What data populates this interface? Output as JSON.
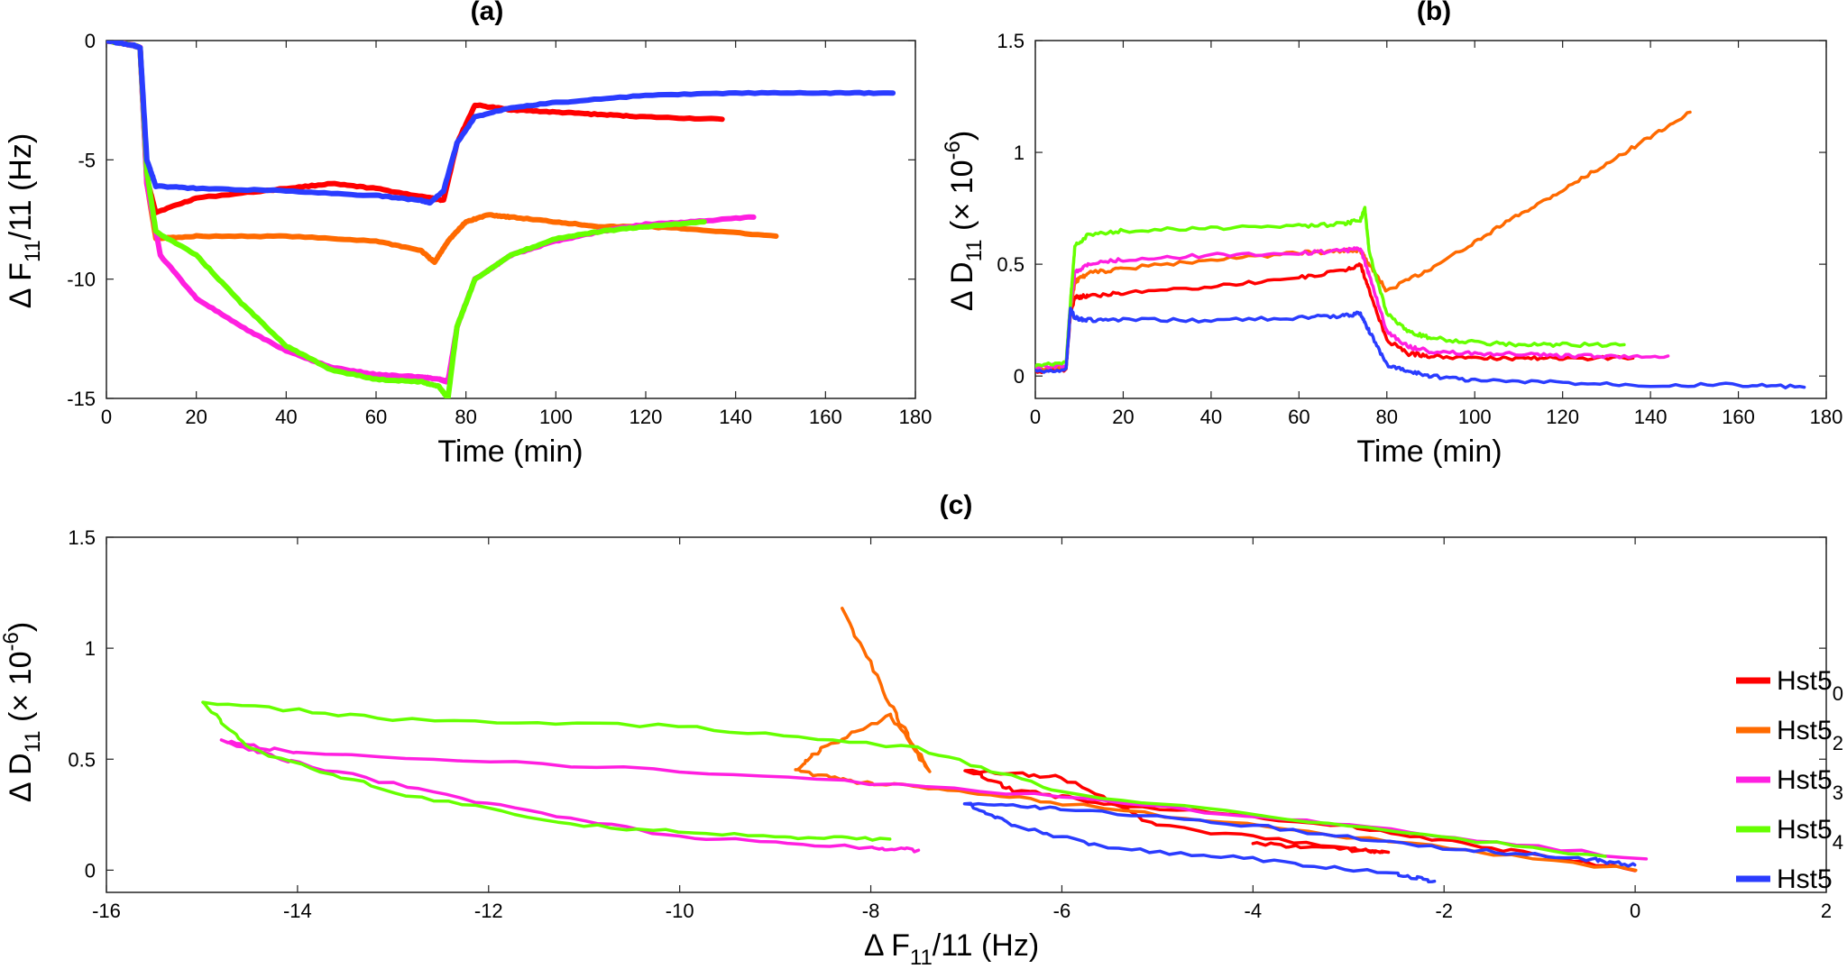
{
  "figure": {
    "colors": {
      "Hst5_0": "#ff0000",
      "Hst5_2": "#ff6a00",
      "Hst5_3": "#ff1fe0",
      "Hst5_4": "#66ff00",
      "Hst5": "#2a3cff"
    }
  },
  "chart_data": [
    {
      "id": "a",
      "type": "line",
      "title": "(a)",
      "xlabel": "Time (min)",
      "ylabel": {
        "base": "Δ F",
        "sub": "11",
        "rest": "/11 (Hz)"
      },
      "xlim": [
        0,
        180
      ],
      "ylim": [
        -15,
        0
      ],
      "xticks": [
        "0",
        "20",
        "40",
        "60",
        "80",
        "100",
        "120",
        "140",
        "160",
        "180"
      ],
      "yticks": [
        "0",
        "-5",
        "-10",
        "-15"
      ],
      "series": [
        {
          "name": "Hst5_0",
          "x": [
            0,
            6,
            7.5,
            9,
            11,
            20,
            40,
            50,
            60,
            72,
            75,
            78,
            82,
            90,
            100,
            110,
            120,
            137
          ],
          "y": [
            0,
            -0.2,
            -0.3,
            -5.8,
            -7.2,
            -6.6,
            -6.2,
            -6.0,
            -6.2,
            -6.6,
            -6.7,
            -4.3,
            -2.7,
            -2.9,
            -3.0,
            -3.1,
            -3.2,
            -3.3
          ]
        },
        {
          "name": "Hst5_2",
          "x": [
            0,
            6,
            7.5,
            9,
            11,
            20,
            40,
            60,
            70,
            73,
            76,
            80,
            85,
            90,
            100,
            110,
            120,
            130,
            149
          ],
          "y": [
            0,
            -0.2,
            -0.3,
            -6.0,
            -8.3,
            -8.2,
            -8.2,
            -8.4,
            -8.8,
            -9.3,
            -8.4,
            -7.6,
            -7.3,
            -7.4,
            -7.6,
            -7.8,
            -7.8,
            -7.9,
            -8.2
          ]
        },
        {
          "name": "Hst5_3",
          "x": [
            0,
            6,
            7.5,
            9,
            12,
            20,
            30,
            40,
            50,
            60,
            70,
            74,
            76,
            78,
            82,
            90,
            100,
            110,
            120,
            130,
            144
          ],
          "y": [
            0,
            -0.2,
            -0.3,
            -6.0,
            -9.0,
            -10.8,
            -12.0,
            -13.0,
            -13.7,
            -14.0,
            -14.1,
            -14.2,
            -14.3,
            -12.0,
            -10.0,
            -9.0,
            -8.4,
            -8.0,
            -7.7,
            -7.6,
            -7.4
          ]
        },
        {
          "name": "Hst5_4",
          "x": [
            0,
            6,
            7.5,
            9,
            11,
            20,
            30,
            40,
            50,
            60,
            70,
            74,
            76,
            78,
            82,
            90,
            100,
            110,
            120,
            133
          ],
          "y": [
            0,
            -0.2,
            -0.3,
            -5.5,
            -8.0,
            -9.0,
            -11.0,
            -12.8,
            -13.8,
            -14.2,
            -14.3,
            -14.5,
            -15.0,
            -12.0,
            -10.0,
            -9.0,
            -8.3,
            -8.0,
            -7.8,
            -7.6
          ]
        },
        {
          "name": "Hst5",
          "x": [
            0,
            6,
            7.5,
            9,
            11,
            20,
            40,
            60,
            70,
            72,
            75,
            78,
            82,
            90,
            100,
            120,
            140,
            160,
            175
          ],
          "y": [
            0,
            -0.2,
            -0.3,
            -5.0,
            -6.1,
            -6.2,
            -6.3,
            -6.5,
            -6.7,
            -6.8,
            -6.3,
            -4.3,
            -3.2,
            -2.8,
            -2.6,
            -2.3,
            -2.2,
            -2.2,
            -2.2
          ]
        }
      ]
    },
    {
      "id": "b",
      "type": "line",
      "title": "(b)",
      "xlabel": "Time (min)",
      "ylabel": {
        "base": "Δ D",
        "sub": "11",
        "rest": " (× 10",
        "sup": "-6",
        "end": ")"
      },
      "xlim": [
        0,
        180
      ],
      "ylim": [
        -0.1,
        1.5
      ],
      "xticks": [
        "0",
        "20",
        "40",
        "60",
        "80",
        "100",
        "120",
        "140",
        "160",
        "180"
      ],
      "yticks": [
        "0",
        "0.5",
        "1",
        "1.5"
      ],
      "series": [
        {
          "name": "Hst5_0",
          "x": [
            0,
            7,
            8,
            9,
            12,
            20,
            40,
            60,
            70,
            74,
            76,
            80,
            85,
            90,
            100,
            110,
            120,
            136
          ],
          "y": [
            0.02,
            0.03,
            0.28,
            0.35,
            0.36,
            0.37,
            0.4,
            0.44,
            0.47,
            0.5,
            0.38,
            0.16,
            0.1,
            0.09,
            0.08,
            0.08,
            0.08,
            0.08
          ]
        },
        {
          "name": "Hst5_2",
          "x": [
            0,
            7,
            8,
            9,
            12,
            20,
            40,
            60,
            70,
            74,
            76,
            80,
            90,
            100,
            110,
            120,
            130,
            140,
            149
          ],
          "y": [
            0.03,
            0.04,
            0.3,
            0.42,
            0.46,
            0.48,
            0.52,
            0.55,
            0.56,
            0.56,
            0.5,
            0.38,
            0.48,
            0.6,
            0.72,
            0.83,
            0.95,
            1.07,
            1.18
          ]
        },
        {
          "name": "Hst5_3",
          "x": [
            0,
            7,
            8,
            9,
            12,
            20,
            40,
            60,
            70,
            74,
            76,
            80,
            85,
            90,
            100,
            110,
            120,
            130,
            144
          ],
          "y": [
            0.04,
            0.05,
            0.32,
            0.46,
            0.5,
            0.52,
            0.54,
            0.55,
            0.56,
            0.57,
            0.45,
            0.2,
            0.13,
            0.11,
            0.1,
            0.1,
            0.09,
            0.09,
            0.09
          ]
        },
        {
          "name": "Hst5_4",
          "x": [
            0,
            7,
            8,
            9,
            12,
            20,
            40,
            60,
            70,
            74,
            75,
            76,
            80,
            85,
            90,
            100,
            110,
            120,
            134
          ],
          "y": [
            0.05,
            0.06,
            0.33,
            0.58,
            0.63,
            0.65,
            0.66,
            0.67,
            0.68,
            0.7,
            0.75,
            0.55,
            0.28,
            0.2,
            0.17,
            0.15,
            0.14,
            0.14,
            0.14
          ]
        },
        {
          "name": "Hst5",
          "x": [
            0,
            7,
            8,
            9,
            12,
            20,
            40,
            60,
            70,
            74,
            76,
            80,
            85,
            90,
            100,
            120,
            140,
            160,
            175
          ],
          "y": [
            0.02,
            0.03,
            0.3,
            0.26,
            0.25,
            0.25,
            0.25,
            0.26,
            0.27,
            0.28,
            0.2,
            0.05,
            0.02,
            0.0,
            -0.02,
            -0.03,
            -0.04,
            -0.04,
            -0.05
          ]
        }
      ]
    },
    {
      "id": "c",
      "type": "line",
      "title": "(c)",
      "xlabel": {
        "base": "Δ F",
        "sub": "11",
        "rest": "/11 (Hz)"
      },
      "ylabel": {
        "base": "Δ D",
        "sub": "11",
        "rest": " (× 10",
        "sup": "-6",
        "end": ")"
      },
      "xlim": [
        -16,
        2
      ],
      "ylim": [
        -0.1,
        1.5
      ],
      "xticks": [
        "-16",
        "-14",
        "-12",
        "-10",
        "-8",
        "-6",
        "-4",
        "-2",
        "0",
        "2"
      ],
      "yticks": [
        "0",
        "0.5",
        "1",
        "1.5"
      ],
      "legend": {
        "location": "right",
        "entries": [
          {
            "series": "Hst5_0",
            "base": "Hst5",
            "sub": "0"
          },
          {
            "series": "Hst5_2",
            "base": "Hst5",
            "sub": "2"
          },
          {
            "series": "Hst5_3",
            "base": "Hst5",
            "sub": "3"
          },
          {
            "series": "Hst5_4",
            "base": "Hst5",
            "sub": "4"
          },
          {
            "series": "Hst5",
            "base": "Hst5",
            "sub": ""
          }
        ]
      },
      "series": [
        {
          "name": "Hst5_0",
          "x": [
            0,
            -1.5,
            -3,
            -5.5,
            -6.5,
            -7.0,
            -6.0,
            -5.0,
            -3.0,
            -2.6,
            -3.2,
            -4.0
          ],
          "y": [
            0.0,
            0.1,
            0.2,
            0.3,
            0.36,
            0.45,
            0.42,
            0.2,
            0.1,
            0.08,
            0.1,
            0.12
          ]
        },
        {
          "name": "Hst5_2",
          "x": [
            0,
            -3,
            -6,
            -7.5,
            -8.2,
            -8.8,
            -8.5,
            -7.8,
            -7.4,
            -7.8,
            -8.3
          ],
          "y": [
            0.0,
            0.15,
            0.3,
            0.38,
            0.4,
            0.45,
            0.55,
            0.7,
            0.45,
            0.75,
            1.18
          ]
        },
        {
          "name": "Hst5_3",
          "x": [
            0.1,
            -3,
            -6,
            -10,
            -14,
            -14.8,
            -14,
            -12,
            -10,
            -8,
            -7.5
          ],
          "y": [
            0.05,
            0.2,
            0.33,
            0.45,
            0.53,
            0.58,
            0.48,
            0.3,
            0.15,
            0.1,
            0.09
          ]
        },
        {
          "name": "Hst5_4",
          "x": [
            -0.3,
            -3,
            -6,
            -7.5,
            -10,
            -13,
            -15,
            -14.5,
            -13,
            -11,
            -9,
            -7.8
          ],
          "y": [
            0.06,
            0.2,
            0.35,
            0.55,
            0.65,
            0.68,
            0.76,
            0.55,
            0.35,
            0.2,
            0.15,
            0.14
          ]
        },
        {
          "name": "Hst5",
          "x": [
            0,
            -0.5,
            -2,
            -4,
            -6,
            -7,
            -6.5,
            -5.5,
            -4,
            -2.5,
            -2.1
          ],
          "y": [
            0.02,
            0.05,
            0.1,
            0.2,
            0.28,
            0.3,
            0.2,
            0.1,
            0.05,
            -0.02,
            -0.05
          ]
        }
      ]
    }
  ]
}
